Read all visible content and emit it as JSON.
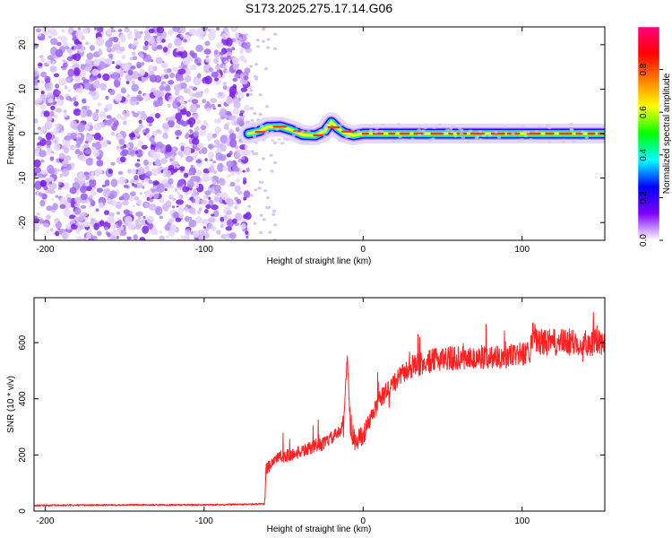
{
  "figure": {
    "title": "S173.2025.275.17.14.G06"
  },
  "chart_data": [
    {
      "type": "heatmap",
      "title": "S173.2025.275.17.14.G06",
      "xlabel": "Height of straight line (km)",
      "ylabel": "Frequency (Hz)",
      "xlim": [
        -207,
        152
      ],
      "ylim": [
        -24,
        24
      ],
      "xticks": [
        -200,
        -100,
        0,
        100
      ],
      "yticks": [
        -20,
        -10,
        0,
        10,
        20
      ],
      "noise_region_x": [
        -207,
        -72
      ],
      "tone_center_hz": 0,
      "ridge": [
        {
          "x": -72,
          "y": 0.0
        },
        {
          "x": -65,
          "y": 0.6
        },
        {
          "x": -60,
          "y": 1.5
        },
        {
          "x": -52,
          "y": 1.6
        },
        {
          "x": -45,
          "y": 0.8
        },
        {
          "x": -38,
          "y": -0.3
        },
        {
          "x": -30,
          "y": -0.4
        },
        {
          "x": -24,
          "y": 0.6
        },
        {
          "x": -20,
          "y": 2.6
        },
        {
          "x": -16,
          "y": 1.2
        },
        {
          "x": -12,
          "y": 0.2
        },
        {
          "x": -6,
          "y": -0.4
        },
        {
          "x": 0,
          "y": 0.0
        },
        {
          "x": 152,
          "y": 0.0
        }
      ],
      "colorbar": {
        "label": "Normalized spectral amplitude",
        "range": [
          0,
          1
        ],
        "ticks": [
          0.0,
          0.2,
          0.4,
          0.6,
          0.8
        ],
        "tick_labels": [
          "0.0",
          "0.2",
          "0.4",
          "0.6",
          "0.8"
        ],
        "colors": [
          "#ffffff",
          "#8000ff",
          "#0000ff",
          "#00ffff",
          "#00ff00",
          "#ffff00",
          "#ff8000",
          "#ff0000",
          "#ff0080"
        ]
      }
    },
    {
      "type": "line",
      "xlabel": "Height of straight line (km)",
      "ylabel": "SNR (10 * v/v)",
      "xlim": [
        -207,
        152
      ],
      "ylim": [
        0,
        760
      ],
      "xticks": [
        -200,
        -100,
        0,
        100
      ],
      "yticks": [
        0,
        200,
        400,
        600
      ],
      "series": [
        {
          "name": "SNR",
          "color": "#ff2020",
          "x": [
            -207,
            -150,
            -100,
            -62,
            -61,
            -55,
            -45,
            -35,
            -25,
            -20,
            -15,
            -12,
            -10,
            -8,
            -5,
            0,
            5,
            10,
            15,
            20,
            25,
            30,
            40,
            50,
            60,
            70,
            80,
            90,
            100,
            105,
            106,
            110,
            120,
            130,
            140,
            152
          ],
          "y": [
            20,
            22,
            22,
            25,
            150,
            190,
            200,
            220,
            240,
            260,
            280,
            330,
            560,
            300,
            250,
            270,
            330,
            390,
            430,
            460,
            490,
            510,
            530,
            545,
            545,
            545,
            550,
            550,
            560,
            570,
            640,
            600,
            600,
            600,
            600,
            600
          ]
        }
      ]
    }
  ]
}
